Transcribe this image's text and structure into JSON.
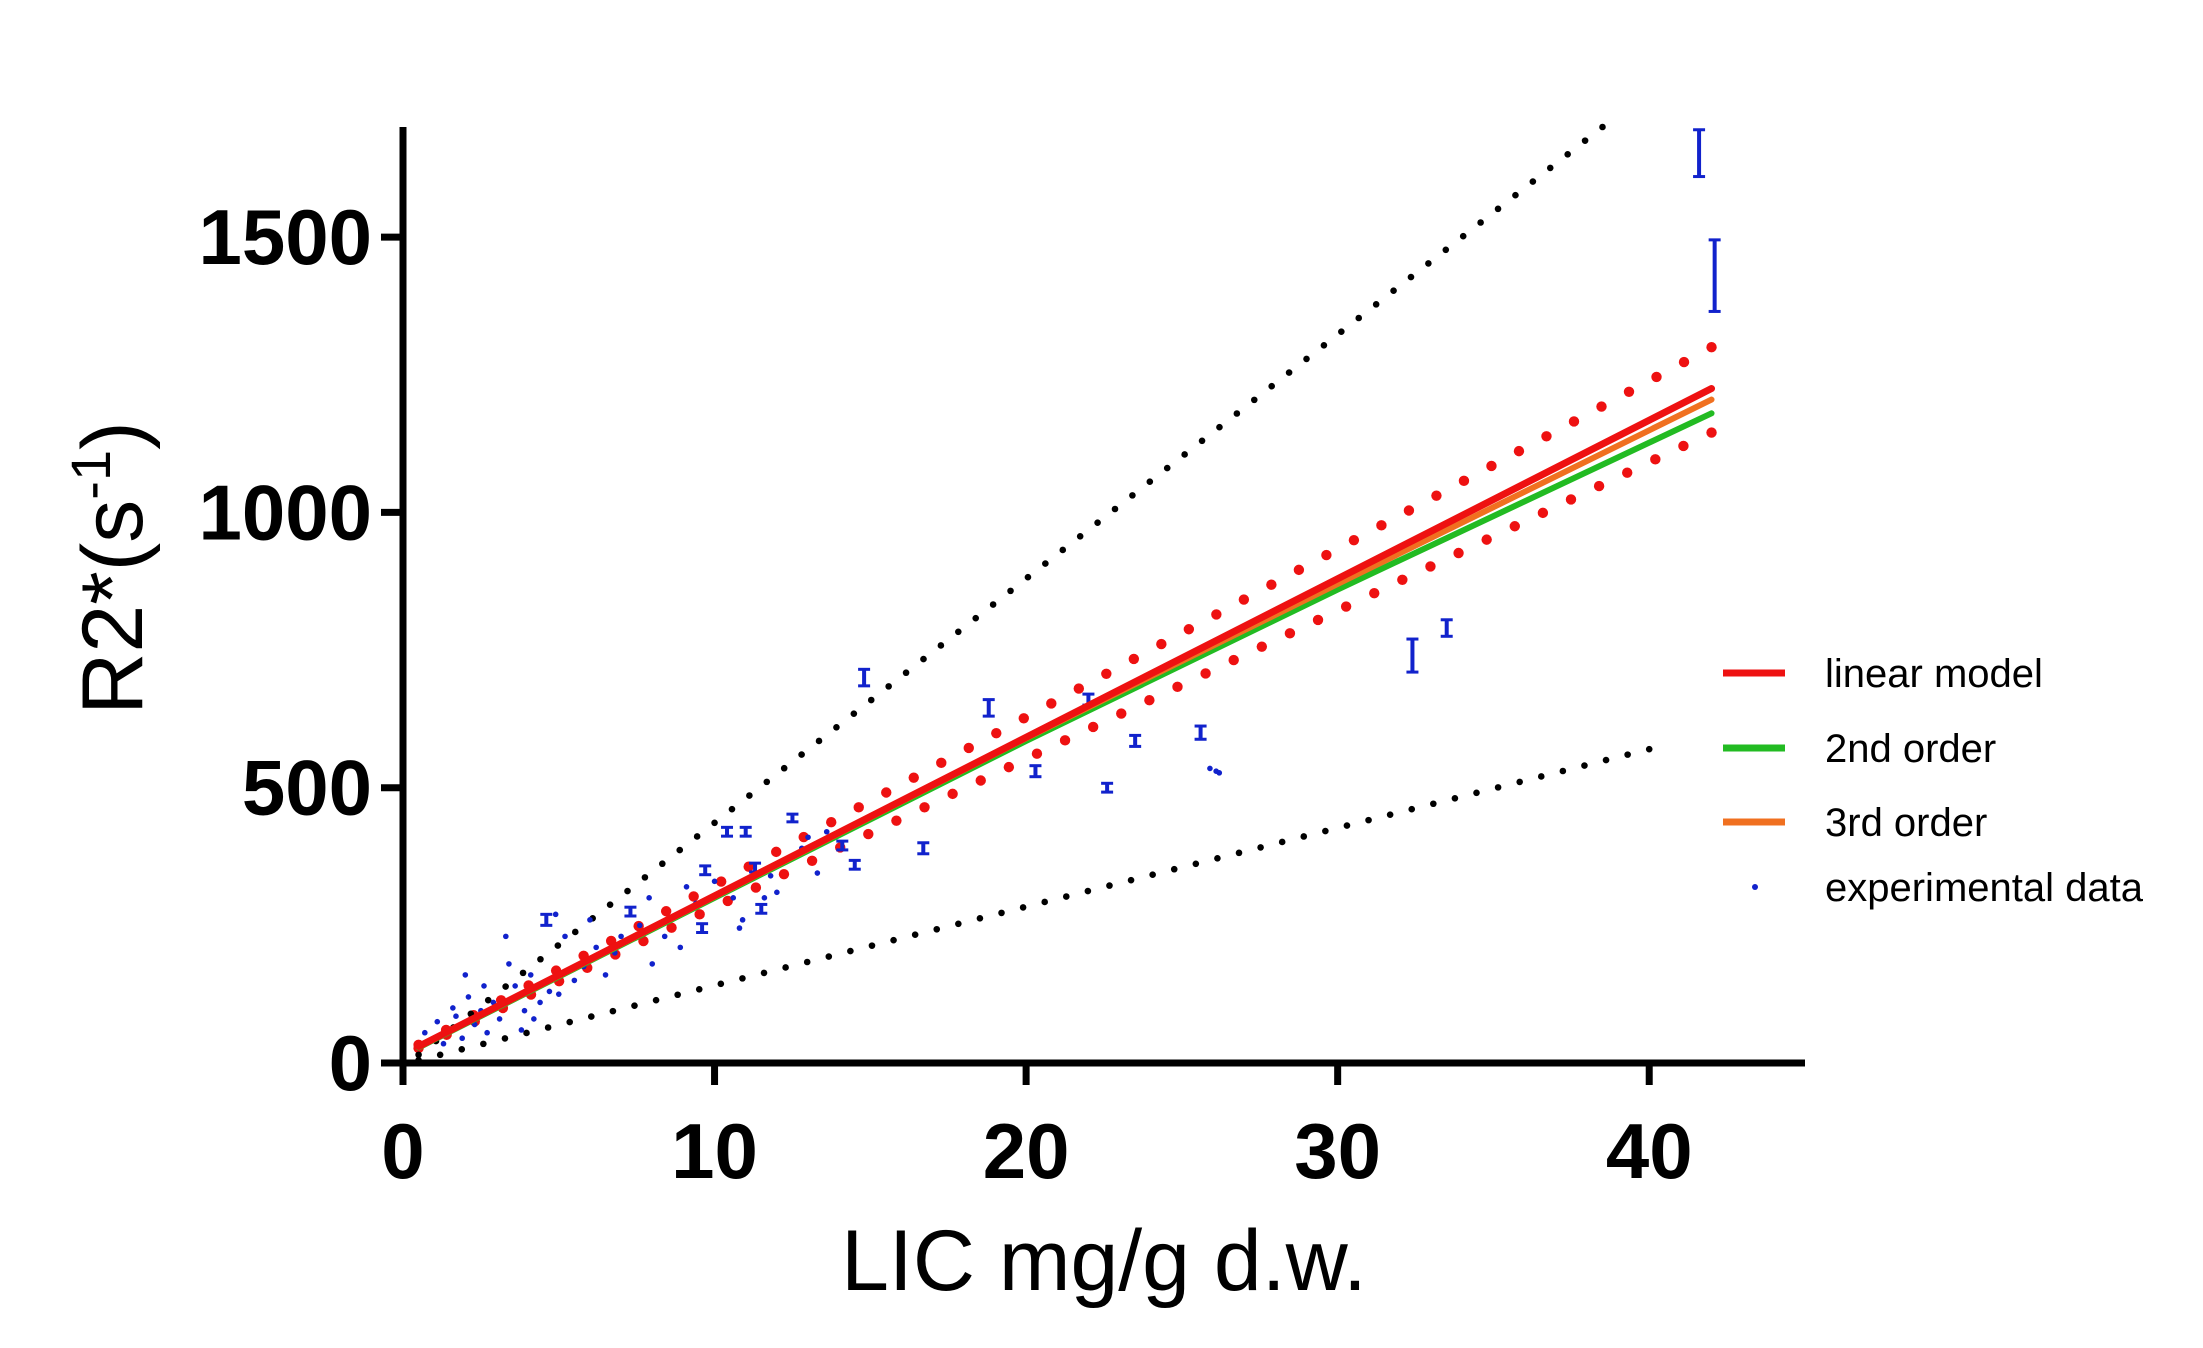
{
  "chart_data": {
    "type": "scatter",
    "xlabel": "LIC mg/g d.w.",
    "ylabel_main": "R2*(s",
    "ylabel_sup": "-1",
    "ylabel_close": ")",
    "xlim": [
      0,
      45
    ],
    "ylim": [
      0,
      1700
    ],
    "xticks": [
      0,
      10,
      20,
      30,
      40
    ],
    "yticks": [
      0,
      500,
      1000,
      1500
    ],
    "xtick_labels": [
      "0",
      "10",
      "20",
      "30",
      "40"
    ],
    "ytick_labels": [
      "0",
      "500",
      "1000",
      "1500"
    ],
    "legend": {
      "position": "right",
      "entries": [
        {
          "label": "linear model",
          "color": "#ee1111",
          "kind": "line"
        },
        {
          "label": "2nd order",
          "color": "#22bb22",
          "kind": "line"
        },
        {
          "label": "3rd order",
          "color": "#f07020",
          "kind": "line"
        },
        {
          "label": "experimental data",
          "color": "#1122cc",
          "kind": "dot"
        }
      ]
    },
    "series": [
      {
        "name": "linear model",
        "color": "#ee1111",
        "x": [
          0.5,
          42
        ],
        "y": [
          30,
          1225
        ]
      },
      {
        "name": "2nd order",
        "color": "#22bb22",
        "x": [
          0.5,
          10,
          20,
          30,
          42
        ],
        "y": [
          28,
          300,
          585,
          860,
          1180
        ]
      },
      {
        "name": "3rd order",
        "color": "#f07020",
        "x": [
          0.5,
          10,
          20,
          30,
          42
        ],
        "y": [
          29,
          302,
          590,
          870,
          1205
        ]
      },
      {
        "name": "linear model upper bound",
        "color": "#ee1111",
        "style": "dotted",
        "x": [
          0.5,
          42
        ],
        "y": [
          33,
          1300
        ]
      },
      {
        "name": "linear model lower bound",
        "color": "#ee1111",
        "style": "dotted",
        "x": [
          0.5,
          42
        ],
        "y": [
          27,
          1145
        ]
      },
      {
        "name": "upper reference",
        "color": "#000000",
        "style": "dotted",
        "x": [
          0.5,
          38.5
        ],
        "y": [
          15,
          1700
        ]
      },
      {
        "name": "lower reference",
        "color": "#000000",
        "style": "dotted",
        "x": [
          0.5,
          40
        ],
        "y": [
          5,
          570
        ]
      }
    ],
    "experimental_data": {
      "color": "#1122cc",
      "error_bars": [
        {
          "x": 41.6,
          "y": 1650,
          "low": 1610,
          "high": 1695
        },
        {
          "x": 42.1,
          "y": 1430,
          "low": 1365,
          "high": 1495
        },
        {
          "x": 32.4,
          "y": 740,
          "low": 710,
          "high": 770
        },
        {
          "x": 33.5,
          "y": 790,
          "low": 775,
          "high": 805
        },
        {
          "x": 14.8,
          "y": 700,
          "low": 685,
          "high": 715
        },
        {
          "x": 18.8,
          "y": 645,
          "low": 630,
          "high": 660
        },
        {
          "x": 22.0,
          "y": 660,
          "low": 650,
          "high": 670
        },
        {
          "x": 25.6,
          "y": 600,
          "low": 588,
          "high": 612
        },
        {
          "x": 23.5,
          "y": 585,
          "low": 575,
          "high": 595
        },
        {
          "x": 20.3,
          "y": 530,
          "low": 520,
          "high": 540
        },
        {
          "x": 22.6,
          "y": 500,
          "low": 492,
          "high": 508
        },
        {
          "x": 16.7,
          "y": 390,
          "low": 380,
          "high": 400
        },
        {
          "x": 12.5,
          "y": 445,
          "low": 438,
          "high": 452
        },
        {
          "x": 10.4,
          "y": 420,
          "low": 412,
          "high": 428
        },
        {
          "x": 11.0,
          "y": 420,
          "low": 412,
          "high": 428
        },
        {
          "x": 14.1,
          "y": 395,
          "low": 387,
          "high": 403
        },
        {
          "x": 14.5,
          "y": 360,
          "low": 352,
          "high": 368
        },
        {
          "x": 9.7,
          "y": 350,
          "low": 342,
          "high": 358
        },
        {
          "x": 11.3,
          "y": 355,
          "low": 347,
          "high": 363
        },
        {
          "x": 9.6,
          "y": 245,
          "low": 237,
          "high": 253
        },
        {
          "x": 11.5,
          "y": 280,
          "low": 272,
          "high": 288
        },
        {
          "x": 7.3,
          "y": 275,
          "low": 267,
          "high": 283
        },
        {
          "x": 4.6,
          "y": 260,
          "low": 250,
          "high": 270
        }
      ],
      "points": [
        {
          "x": 26.1,
          "y": 530
        },
        {
          "x": 26.2,
          "y": 527
        },
        {
          "x": 25.9,
          "y": 535
        },
        {
          "x": 13.0,
          "y": 410
        },
        {
          "x": 13.6,
          "y": 420
        },
        {
          "x": 12.8,
          "y": 390
        },
        {
          "x": 12.0,
          "y": 310
        },
        {
          "x": 11.8,
          "y": 340
        },
        {
          "x": 10.8,
          "y": 245
        },
        {
          "x": 10.9,
          "y": 260
        },
        {
          "x": 10.0,
          "y": 330
        },
        {
          "x": 9.4,
          "y": 290
        },
        {
          "x": 8.9,
          "y": 210
        },
        {
          "x": 8.4,
          "y": 230
        },
        {
          "x": 8.0,
          "y": 180
        },
        {
          "x": 7.6,
          "y": 250
        },
        {
          "x": 6.8,
          "y": 200
        },
        {
          "x": 6.5,
          "y": 160
        },
        {
          "x": 6.2,
          "y": 210
        },
        {
          "x": 5.8,
          "y": 175
        },
        {
          "x": 5.5,
          "y": 150
        },
        {
          "x": 5.2,
          "y": 230
        },
        {
          "x": 4.9,
          "y": 270
        },
        {
          "x": 4.7,
          "y": 130
        },
        {
          "x": 4.4,
          "y": 110
        },
        {
          "x": 4.1,
          "y": 160
        },
        {
          "x": 3.9,
          "y": 95
        },
        {
          "x": 3.6,
          "y": 140
        },
        {
          "x": 3.3,
          "y": 230
        },
        {
          "x": 3.1,
          "y": 80
        },
        {
          "x": 2.9,
          "y": 110
        },
        {
          "x": 2.7,
          "y": 55
        },
        {
          "x": 2.5,
          "y": 95
        },
        {
          "x": 2.3,
          "y": 70
        },
        {
          "x": 2.1,
          "y": 120
        },
        {
          "x": 1.9,
          "y": 45
        },
        {
          "x": 1.7,
          "y": 85
        },
        {
          "x": 1.5,
          "y": 60
        },
        {
          "x": 1.3,
          "y": 35
        },
        {
          "x": 1.1,
          "y": 75
        },
        {
          "x": 0.9,
          "y": 40
        },
        {
          "x": 0.7,
          "y": 55
        },
        {
          "x": 3.4,
          "y": 180
        },
        {
          "x": 2.0,
          "y": 160
        },
        {
          "x": 4.2,
          "y": 80
        },
        {
          "x": 5.0,
          "y": 125
        },
        {
          "x": 6.0,
          "y": 260
        },
        {
          "x": 7.0,
          "y": 230
        },
        {
          "x": 7.9,
          "y": 300
        },
        {
          "x": 9.1,
          "y": 320
        },
        {
          "x": 10.6,
          "y": 300
        },
        {
          "x": 11.6,
          "y": 300
        },
        {
          "x": 12.3,
          "y": 370
        },
        {
          "x": 13.3,
          "y": 345
        },
        {
          "x": 2.6,
          "y": 140
        },
        {
          "x": 1.6,
          "y": 100
        },
        {
          "x": 3.8,
          "y": 60
        }
      ]
    }
  }
}
